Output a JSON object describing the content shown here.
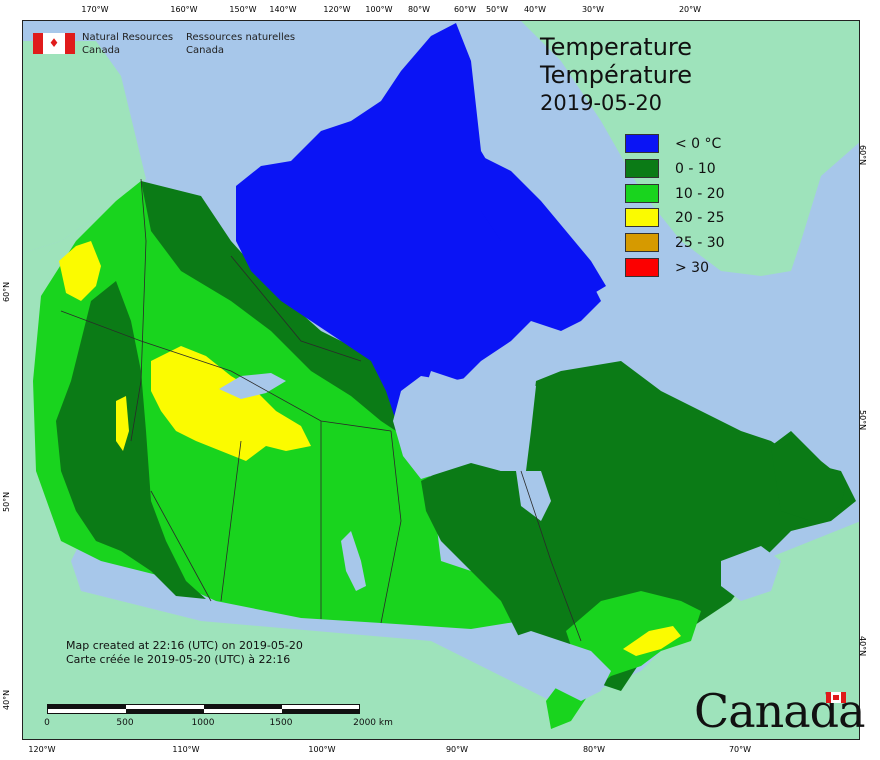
{
  "header": {
    "agency_en_line1": "Natural Resources",
    "agency_en_line2": "Canada",
    "agency_fr_line1": "Ressources naturelles",
    "agency_fr_line2": "Canada"
  },
  "title": {
    "en": "Temperature",
    "fr": "Température",
    "date": "2019-05-20"
  },
  "legend": {
    "items": [
      {
        "label": "< 0 °C",
        "color": "#0a14f5"
      },
      {
        "label": "0 - 10",
        "color": "#0b7b16"
      },
      {
        "label": "10 - 20",
        "color": "#19d41e"
      },
      {
        "label": "20 - 25",
        "color": "#fbfb00"
      },
      {
        "label": "25 - 30",
        "color": "#d69a00"
      },
      {
        "label": "> 30",
        "color": "#fc0000"
      }
    ]
  },
  "credits": {
    "line_en": "Map created at 22:16 (UTC) on 2019-05-20",
    "line_fr": "Carte créée le 2019-05-20 (UTC) à 22:16"
  },
  "scale_bar": {
    "labels": [
      "0",
      "500",
      "1000",
      "1500",
      "2000 km"
    ]
  },
  "wordmark": "Canada",
  "graticule": {
    "top": [
      "170°W",
      "160°W",
      "150°W",
      "140°W",
      "120°W",
      "100°W",
      "80°W",
      "60°W",
      "50°W",
      "40°W",
      "30°W",
      "20°W"
    ],
    "bottom": [
      "120°W",
      "110°W",
      "100°W",
      "90°W",
      "80°W",
      "70°W"
    ],
    "left": [
      "60°N",
      "50°N",
      "40°N"
    ],
    "right": [
      "60°N",
      "50°N",
      "40°N"
    ]
  }
}
